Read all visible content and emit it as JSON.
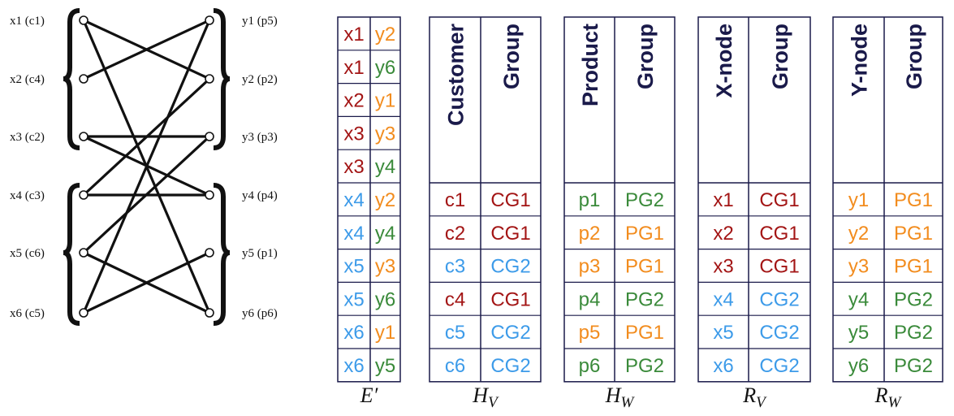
{
  "colors": {
    "dark_red": "#a31515",
    "orange": "#f28c1e",
    "green": "#3a8a3a",
    "blue": "#3d9be9",
    "border": "#1a1a4a",
    "ink": "#111111"
  },
  "graph": {
    "left_nodes": [
      {
        "label": "x1 (c1)"
      },
      {
        "label": "x2 (c4)"
      },
      {
        "label": "x3 (c2)"
      },
      {
        "label": "x4 (c3)"
      },
      {
        "label": "x5 (c6)"
      },
      {
        "label": "x6 (c5)"
      }
    ],
    "right_nodes": [
      {
        "label": "y1 (p5)"
      },
      {
        "label": "y2 (p2)"
      },
      {
        "label": "y3 (p3)"
      },
      {
        "label": "y4 (p4)"
      },
      {
        "label": "y5 (p1)"
      },
      {
        "label": "y6 (p6)"
      }
    ],
    "edges": [
      [
        1,
        2
      ],
      [
        1,
        6
      ],
      [
        2,
        1
      ],
      [
        3,
        3
      ],
      [
        3,
        4
      ],
      [
        4,
        2
      ],
      [
        4,
        4
      ],
      [
        5,
        3
      ],
      [
        5,
        6
      ],
      [
        6,
        1
      ],
      [
        6,
        5
      ]
    ]
  },
  "edge_table": {
    "caption": "E′",
    "rows": [
      {
        "x": "x1",
        "y": "y2",
        "xc": "dark_red",
        "yc": "orange"
      },
      {
        "x": "x1",
        "y": "y6",
        "xc": "dark_red",
        "yc": "green"
      },
      {
        "x": "x2",
        "y": "y1",
        "xc": "dark_red",
        "yc": "orange"
      },
      {
        "x": "x3",
        "y": "y3",
        "xc": "dark_red",
        "yc": "orange"
      },
      {
        "x": "x3",
        "y": "y4",
        "xc": "dark_red",
        "yc": "green"
      },
      {
        "x": "x4",
        "y": "y2",
        "xc": "blue",
        "yc": "orange"
      },
      {
        "x": "x4",
        "y": "y4",
        "xc": "blue",
        "yc": "green"
      },
      {
        "x": "x5",
        "y": "y3",
        "xc": "blue",
        "yc": "orange"
      },
      {
        "x": "x5",
        "y": "y6",
        "xc": "blue",
        "yc": "green"
      },
      {
        "x": "x6",
        "y": "y1",
        "xc": "blue",
        "yc": "orange"
      },
      {
        "x": "x6",
        "y": "y5",
        "xc": "blue",
        "yc": "green"
      }
    ]
  },
  "tables": [
    {
      "caption_main": "H",
      "caption_sub": "V",
      "headers": [
        "Customer",
        "Group"
      ],
      "rows": [
        {
          "a": "c1",
          "b": "CG1",
          "c": "dark_red"
        },
        {
          "a": "c2",
          "b": "CG1",
          "c": "dark_red"
        },
        {
          "a": "c3",
          "b": "CG2",
          "c": "blue"
        },
        {
          "a": "c4",
          "b": "CG1",
          "c": "dark_red"
        },
        {
          "a": "c5",
          "b": "CG2",
          "c": "blue"
        },
        {
          "a": "c6",
          "b": "CG2",
          "c": "blue"
        }
      ]
    },
    {
      "caption_main": "H",
      "caption_sub": "W",
      "headers": [
        "Product",
        "Group"
      ],
      "rows": [
        {
          "a": "p1",
          "b": "PG2",
          "c": "green"
        },
        {
          "a": "p2",
          "b": "PG1",
          "c": "orange"
        },
        {
          "a": "p3",
          "b": "PG1",
          "c": "orange"
        },
        {
          "a": "p4",
          "b": "PG2",
          "c": "green"
        },
        {
          "a": "p5",
          "b": "PG1",
          "c": "orange"
        },
        {
          "a": "p6",
          "b": "PG2",
          "c": "green"
        }
      ]
    },
    {
      "caption_main": "R",
      "caption_sub": "V",
      "headers": [
        "X-node",
        "Group"
      ],
      "rows": [
        {
          "a": "x1",
          "b": "CG1",
          "c": "dark_red"
        },
        {
          "a": "x2",
          "b": "CG1",
          "c": "dark_red"
        },
        {
          "a": "x3",
          "b": "CG1",
          "c": "dark_red"
        },
        {
          "a": "x4",
          "b": "CG2",
          "c": "blue"
        },
        {
          "a": "x5",
          "b": "CG2",
          "c": "blue"
        },
        {
          "a": "x6",
          "b": "CG2",
          "c": "blue"
        }
      ]
    },
    {
      "caption_main": "R",
      "caption_sub": "W",
      "headers": [
        "Y-node",
        "Group"
      ],
      "rows": [
        {
          "a": "y1",
          "b": "PG1",
          "c": "orange"
        },
        {
          "a": "y2",
          "b": "PG1",
          "c": "orange"
        },
        {
          "a": "y3",
          "b": "PG1",
          "c": "orange"
        },
        {
          "a": "y4",
          "b": "PG2",
          "c": "green"
        },
        {
          "a": "y5",
          "b": "PG2",
          "c": "green"
        },
        {
          "a": "y6",
          "b": "PG2",
          "c": "green"
        }
      ]
    }
  ]
}
